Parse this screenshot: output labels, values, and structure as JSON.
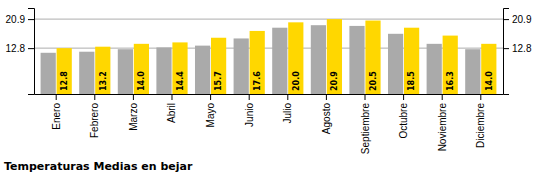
{
  "chart_data": {
    "type": "bar",
    "title": "Temperaturas Medias en bejar",
    "categories": [
      "Enero",
      "Febrero",
      "Marzo",
      "Abril",
      "Mayo",
      "Junio",
      "Julio",
      "Agosto",
      "Septiembre",
      "Octubre",
      "Noviembre",
      "Diciembre"
    ],
    "series": [
      {
        "color": "#AAAAAA",
        "values": [
          11.5,
          11.8,
          12.5,
          13.0,
          13.5,
          15.5,
          18.5,
          19.2,
          19.0,
          16.8,
          14.0,
          12.5
        ]
      },
      {
        "color": "#FFD700",
        "values": [
          12.8,
          13.2,
          14.0,
          14.4,
          15.7,
          17.6,
          20.0,
          20.9,
          20.5,
          18.5,
          16.3,
          14.0
        ],
        "data_labels": true,
        "value_labels": [
          "12.8",
          "13.2",
          "14.0",
          "14.4",
          "15.7",
          "17.6",
          "20.0",
          "20.9",
          "20.5",
          "18.5",
          "16.3",
          "14.0"
        ]
      }
    ],
    "ylim": [
      0,
      24.0
    ],
    "yticks": [
      12.8,
      20.9
    ],
    "y2lim": [
      0,
      24.0
    ],
    "y2ticks": [
      12.8,
      20.9
    ],
    "grid": true
  }
}
